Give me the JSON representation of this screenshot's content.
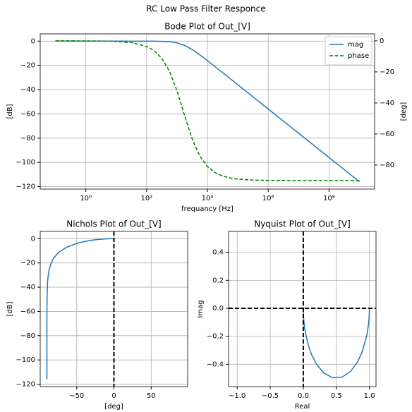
{
  "suptitle": "RC Low Pass Filter Responce",
  "chart_data": [
    {
      "type": "line",
      "title": "Bode Plot of Out_[V]",
      "xlabel": "frequancy [Hz]",
      "ylabel": "[dB]",
      "y2label": "[deg]",
      "xscale": "log",
      "grid": true,
      "legend": "upper right",
      "x": [
        0.1,
        0.3162,
        1,
        3.162,
        10,
        31.62,
        100,
        177.8,
        316.2,
        562.3,
        1000,
        1778,
        3162,
        5623,
        10000,
        17783,
        31623,
        56234,
        100000,
        316228,
        1000000,
        3162278,
        10000000,
        31622777,
        100000000,
        316227766,
        1000000000
      ],
      "series": [
        {
          "name": "mag",
          "color": "#1f77b4",
          "linestyle": "solid",
          "values": [
            0,
            0,
            0,
            0,
            -0.0002,
            -0.0017,
            -0.017,
            -0.054,
            -0.168,
            -0.511,
            -1.44,
            -3.52,
            -6.94,
            -11.29,
            -16.07,
            -21.0,
            -25.96,
            -30.96,
            -35.96,
            -45.96,
            -55.96,
            -65.96,
            -75.96,
            -85.96,
            -95.96,
            -105.96,
            -115.96
          ]
        },
        {
          "name": "phase",
          "color": "#008000",
          "linestyle": "dashed",
          "axis": "y2",
          "values": [
            -0.0036,
            -0.011,
            -0.036,
            -0.11,
            -0.36,
            -1.14,
            -3.59,
            -6.37,
            -11.23,
            -19.45,
            -32.13,
            -48.16,
            -63.28,
            -74.19,
            -80.95,
            -84.88,
            -87.12,
            -88.38,
            -89.09,
            -89.71,
            -89.91,
            -89.97,
            -89.99,
            -90,
            -90,
            -90,
            -90
          ]
        }
      ],
      "xlim": [
        0.0316,
        3160000000
      ],
      "xticks": [
        {
          "value": 1,
          "label": "10⁰"
        },
        {
          "value": 100,
          "label": "10²"
        },
        {
          "value": 10000,
          "label": "10⁴"
        },
        {
          "value": 1000000,
          "label": "10⁶"
        },
        {
          "value": 100000000,
          "label": "10⁸"
        }
      ],
      "ylim": [
        -122,
        6
      ],
      "yticks": [
        0,
        {
          "value": -20,
          "label": "−20"
        },
        {
          "value": -40,
          "label": "−40"
        },
        {
          "value": -60,
          "label": "−60"
        },
        {
          "value": -80,
          "label": "−80"
        },
        {
          "value": -100,
          "label": "−100"
        },
        {
          "value": -120,
          "label": "−120"
        }
      ],
      "y2lim": [
        -95.5,
        4.5
      ],
      "y2ticks": [
        0,
        {
          "value": -20,
          "label": "−20"
        },
        {
          "value": -40,
          "label": "−40"
        },
        {
          "value": -60,
          "label": "−60"
        },
        {
          "value": -80,
          "label": "−80"
        }
      ]
    },
    {
      "type": "line",
      "title": "Nichols Plot of Out_[V]",
      "xlabel": "[deg]",
      "ylabel": "[dB]",
      "grid": true,
      "x": [
        -0.0036,
        -0.011,
        -0.036,
        -0.11,
        -0.36,
        -1.14,
        -3.59,
        -6.37,
        -11.23,
        -19.45,
        -32.13,
        -48.16,
        -63.28,
        -74.19,
        -80.95,
        -84.88,
        -87.12,
        -88.38,
        -89.09,
        -89.71,
        -89.91,
        -89.97,
        -89.99,
        -90,
        -90,
        -90,
        -90
      ],
      "series": [
        {
          "color": "#1f77b4",
          "linestyle": "solid",
          "values": [
            0,
            0,
            0,
            0,
            -0.0002,
            -0.0017,
            -0.017,
            -0.054,
            -0.168,
            -0.511,
            -1.44,
            -3.52,
            -6.94,
            -11.29,
            -16.07,
            -21.0,
            -25.96,
            -30.96,
            -35.96,
            -45.96,
            -55.96,
            -65.96,
            -75.96,
            -85.96,
            -95.96,
            -105.96,
            -115.96
          ]
        }
      ],
      "vline": 0,
      "xlim": [
        -99,
        99
      ],
      "xticks": [
        {
          "value": -50,
          "label": "−50"
        },
        0,
        50
      ],
      "ylim": [
        -122,
        6
      ],
      "yticks": [
        0,
        {
          "value": -20,
          "label": "−20"
        },
        {
          "value": -40,
          "label": "−40"
        },
        {
          "value": -60,
          "label": "−60"
        },
        {
          "value": -80,
          "label": "−80"
        },
        {
          "value": -100,
          "label": "−100"
        },
        {
          "value": -120,
          "label": "−120"
        }
      ]
    },
    {
      "type": "line",
      "title": "Nyquist Plot of Out_[V]",
      "xlabel": "Real",
      "ylabel": "Imag",
      "grid": true,
      "x": [
        1.0,
        1.0,
        0.9996,
        0.9961,
        0.9877,
        0.962,
        0.8891,
        0.8184,
        0.7171,
        0.5878,
        0.4448,
        0.3109,
        0.2022,
        0.1247,
        0.0742,
        0.0247,
        0.008,
        0.0025,
        0.0003,
        0.0
      ],
      "series": [
        {
          "color": "#1f77b4",
          "linestyle": "solid",
          "values": [
            -0.0006,
            -0.0063,
            -0.0199,
            -0.0626,
            -0.1103,
            -0.1911,
            -0.314,
            -0.3855,
            -0.4503,
            -0.4922,
            -0.4969,
            -0.4628,
            -0.4016,
            -0.3304,
            -0.2622,
            -0.1553,
            -0.0888,
            -0.0502,
            -0.0159,
            -0.0016
          ]
        }
      ],
      "vline": 0,
      "hline": 0,
      "xlim": [
        -1.13,
        1.1
      ],
      "xticks": [
        {
          "value": -1,
          "label": "−1.0"
        },
        {
          "value": -0.5,
          "label": "−0.5"
        },
        {
          "value": 0,
          "label": "0.0"
        },
        {
          "value": 0.5,
          "label": "0.5"
        },
        {
          "value": 1,
          "label": "1.0"
        }
      ],
      "ylim": [
        -0.56,
        0.55
      ],
      "yticks": [
        {
          "value": -0.4,
          "label": "−0.4"
        },
        {
          "value": -0.2,
          "label": "−0.2"
        },
        {
          "value": 0,
          "label": "0.0"
        },
        {
          "value": 0.2,
          "label": "0.2"
        },
        {
          "value": 0.4,
          "label": "0.4"
        }
      ]
    }
  ]
}
